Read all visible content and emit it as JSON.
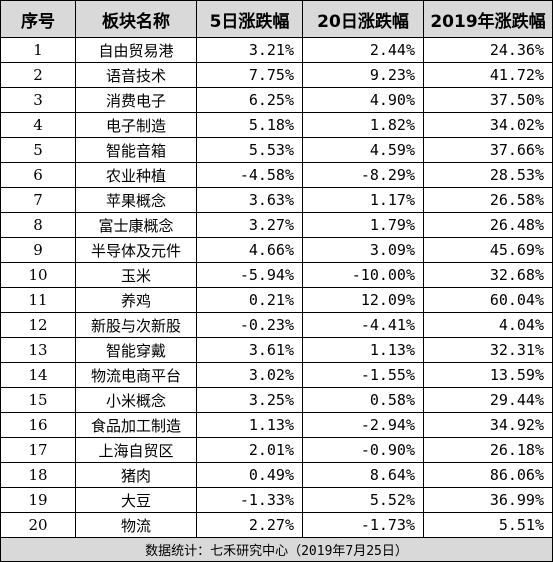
{
  "headers": [
    "序号",
    "板块名称",
    "5日涨跌幅",
    "20日涨跌幅",
    "2019年涨跌幅"
  ],
  "rows": [
    {
      "index": "1",
      "name": "自由贸易港",
      "d5": "3.21%",
      "d20": "2.44%",
      "ytd": "24.36%"
    },
    {
      "index": "2",
      "name": "语音技术",
      "d5": "7.75%",
      "d20": "9.23%",
      "ytd": "41.72%"
    },
    {
      "index": "3",
      "name": "消费电子",
      "d5": "6.25%",
      "d20": "4.90%",
      "ytd": "37.50%"
    },
    {
      "index": "4",
      "name": "电子制造",
      "d5": "5.18%",
      "d20": "1.82%",
      "ytd": "34.02%"
    },
    {
      "index": "5",
      "name": "智能音箱",
      "d5": "5.53%",
      "d20": "4.59%",
      "ytd": "37.66%"
    },
    {
      "index": "6",
      "name": "农业种植",
      "d5": "-4.58%",
      "d20": "-8.29%",
      "ytd": "28.53%"
    },
    {
      "index": "7",
      "name": "苹果概念",
      "d5": "3.63%",
      "d20": "1.17%",
      "ytd": "26.58%"
    },
    {
      "index": "8",
      "name": "富士康概念",
      "d5": "3.27%",
      "d20": "1.79%",
      "ytd": "26.48%"
    },
    {
      "index": "9",
      "name": "半导体及元件",
      "d5": "4.66%",
      "d20": "3.09%",
      "ytd": "45.69%"
    },
    {
      "index": "10",
      "name": "玉米",
      "d5": "-5.94%",
      "d20": "-10.00%",
      "ytd": "32.68%"
    },
    {
      "index": "11",
      "name": "养鸡",
      "d5": "0.21%",
      "d20": "12.09%",
      "ytd": "60.04%"
    },
    {
      "index": "12",
      "name": "新股与次新股",
      "d5": "-0.23%",
      "d20": "-4.41%",
      "ytd": "4.04%"
    },
    {
      "index": "13",
      "name": "智能穿戴",
      "d5": "3.61%",
      "d20": "1.13%",
      "ytd": "32.31%"
    },
    {
      "index": "14",
      "name": "物流电商平台",
      "d5": "3.02%",
      "d20": "-1.55%",
      "ytd": "13.59%"
    },
    {
      "index": "15",
      "name": "小米概念",
      "d5": "3.25%",
      "d20": "0.58%",
      "ytd": "29.44%"
    },
    {
      "index": "16",
      "name": "食品加工制造",
      "d5": "1.13%",
      "d20": "-2.94%",
      "ytd": "34.92%"
    },
    {
      "index": "17",
      "name": "上海自贸区",
      "d5": "2.01%",
      "d20": "-0.90%",
      "ytd": "26.18%"
    },
    {
      "index": "18",
      "name": "猪肉",
      "d5": "0.49%",
      "d20": "8.64%",
      "ytd": "86.06%"
    },
    {
      "index": "19",
      "name": "大豆",
      "d5": "-1.33%",
      "d20": "5.52%",
      "ytd": "36.99%"
    },
    {
      "index": "20",
      "name": "物流",
      "d5": "2.27%",
      "d20": "-1.73%",
      "ytd": "5.51%"
    }
  ],
  "footer": "数据统计：七禾研究中心（2019年7月25日）",
  "colors": {
    "header_bg": "#d9d9d9",
    "footer_bg": "#d9d9d9",
    "border": "#000000"
  }
}
